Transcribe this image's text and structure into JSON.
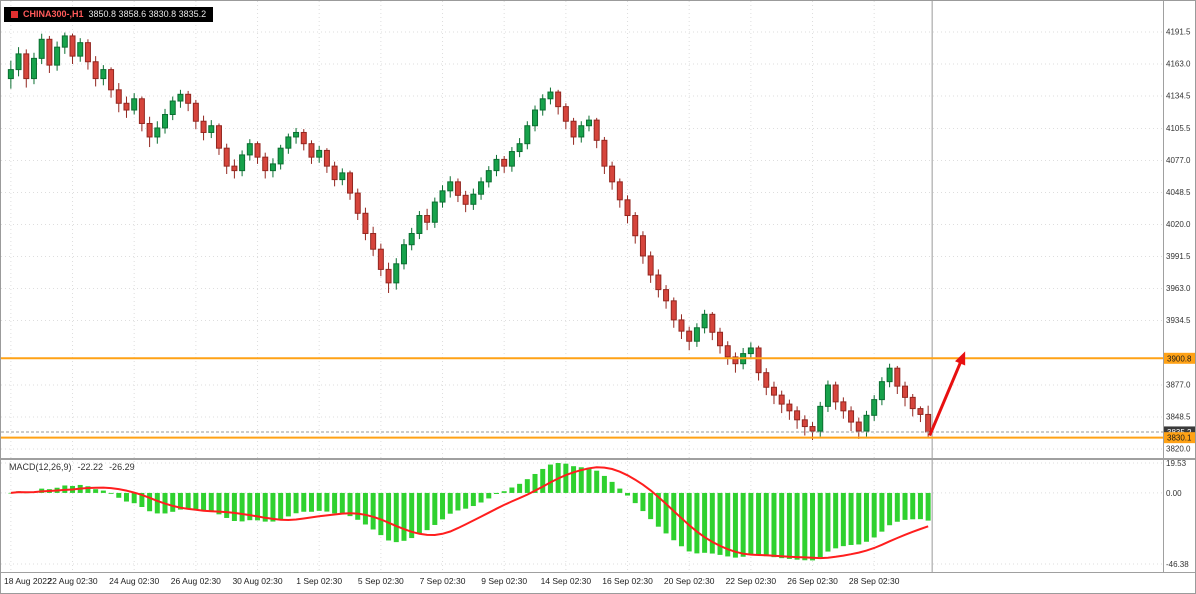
{
  "header": {
    "symbol": "CHINA300-,H1",
    "ohlc_text": "3850.8 3858.6 3830.8 3835.2"
  },
  "macd_panel": {
    "label": "MACD(12,26,9)",
    "value_main": "-22.22",
    "value_signal": "-26.29"
  },
  "colors": {
    "up": "#17A24B",
    "up_dark": "#0B6E31",
    "down": "#D6453C",
    "down_dark": "#932720",
    "hline": "#FFA216",
    "arrow": "#E81010",
    "hist": "#2FD12F",
    "signal": "#FF1E1E",
    "grid": "#DEDEDE",
    "axis_text": "#222222",
    "separator": "#A0A0A0",
    "price_label_bg": "#3A3A3A"
  },
  "chart_data": [
    {
      "type": "candlestick",
      "title": "CHINA300- H1",
      "x_tick_labels": [
        "18 Aug 2022",
        "22 Aug 02:30",
        "24 Aug 02:30",
        "26 Aug 02:30",
        "30 Aug 02:30",
        "1 Sep 02:30",
        "5 Sep 02:30",
        "7 Sep 02:30",
        "9 Sep 02:30",
        "14 Sep 02:30",
        "16 Sep 02:30",
        "20 Sep 02:30",
        "22 Sep 02:30",
        "26 Sep 02:30",
        "28 Sep 02:30"
      ],
      "x_tick_every_bars": 8,
      "y_ticks": [
        4191.5,
        4163.0,
        4134.5,
        4105.5,
        4077.0,
        4048.5,
        4020.0,
        3991.5,
        3963.0,
        3934.5,
        3877.0,
        3848.5,
        3820.0
      ],
      "ylim": [
        3815,
        4200
      ],
      "grid": "dotted",
      "candles_ohlc": [
        [
          4150,
          4166,
          4141,
          4158
        ],
        [
          4158,
          4178,
          4152,
          4172
        ],
        [
          4172,
          4176,
          4142,
          4150
        ],
        [
          4150,
          4173,
          4145,
          4168
        ],
        [
          4168,
          4190,
          4163,
          4185
        ],
        [
          4185,
          4188,
          4155,
          4162
        ],
        [
          4162,
          4183,
          4157,
          4178
        ],
        [
          4178,
          4191,
          4172,
          4188
        ],
        [
          4188,
          4190,
          4163,
          4170
        ],
        [
          4170,
          4186,
          4165,
          4182
        ],
        [
          4182,
          4185,
          4158,
          4165
        ],
        [
          4165,
          4170,
          4143,
          4150
        ],
        [
          4150,
          4162,
          4144,
          4158
        ],
        [
          4158,
          4160,
          4133,
          4140
        ],
        [
          4140,
          4146,
          4120,
          4128
        ],
        [
          4128,
          4134,
          4115,
          4122
        ],
        [
          4122,
          4137,
          4118,
          4132
        ],
        [
          4132,
          4134,
          4103,
          4110
        ],
        [
          4110,
          4116,
          4089,
          4098
        ],
        [
          4098,
          4112,
          4092,
          4106
        ],
        [
          4106,
          4123,
          4101,
          4118
        ],
        [
          4118,
          4134,
          4113,
          4130
        ],
        [
          4130,
          4140,
          4124,
          4136
        ],
        [
          4136,
          4139,
          4121,
          4128
        ],
        [
          4128,
          4131,
          4105,
          4112
        ],
        [
          4112,
          4117,
          4095,
          4102
        ],
        [
          4102,
          4113,
          4097,
          4108
        ],
        [
          4108,
          4110,
          4082,
          4088
        ],
        [
          4088,
          4092,
          4065,
          4072
        ],
        [
          4072,
          4078,
          4061,
          4068
        ],
        [
          4068,
          4086,
          4063,
          4082
        ],
        [
          4082,
          4096,
          4077,
          4092
        ],
        [
          4092,
          4094,
          4074,
          4080
        ],
        [
          4080,
          4084,
          4061,
          4068
        ],
        [
          4068,
          4079,
          4062,
          4074
        ],
        [
          4074,
          4091,
          4069,
          4088
        ],
        [
          4088,
          4101,
          4083,
          4098
        ],
        [
          4098,
          4106,
          4092,
          4102
        ],
        [
          4102,
          4105,
          4086,
          4092
        ],
        [
          4092,
          4095,
          4074,
          4080
        ],
        [
          4080,
          4090,
          4075,
          4086
        ],
        [
          4086,
          4088,
          4066,
          4072
        ],
        [
          4072,
          4076,
          4054,
          4060
        ],
        [
          4060,
          4070,
          4055,
          4066
        ],
        [
          4066,
          4068,
          4042,
          4048
        ],
        [
          4048,
          4052,
          4024,
          4030
        ],
        [
          4030,
          4035,
          4006,
          4012
        ],
        [
          4012,
          4018,
          3992,
          3998
        ],
        [
          3998,
          4003,
          3974,
          3980
        ],
        [
          3980,
          3986,
          3959,
          3968
        ],
        [
          3968,
          3990,
          3962,
          3985
        ],
        [
          3985,
          4007,
          3980,
          4002
        ],
        [
          4002,
          4017,
          3997,
          4012
        ],
        [
          4012,
          4032,
          4007,
          4028
        ],
        [
          4028,
          4034,
          4015,
          4022
        ],
        [
          4022,
          4044,
          4017,
          4040
        ],
        [
          4040,
          4055,
          4035,
          4050
        ],
        [
          4050,
          4063,
          4044,
          4058
        ],
        [
          4058,
          4061,
          4040,
          4046
        ],
        [
          4046,
          4050,
          4031,
          4038
        ],
        [
          4038,
          4052,
          4033,
          4047
        ],
        [
          4047,
          4062,
          4042,
          4058
        ],
        [
          4058,
          4072,
          4053,
          4068
        ],
        [
          4068,
          4082,
          4063,
          4078
        ],
        [
          4078,
          4081,
          4066,
          4072
        ],
        [
          4072,
          4089,
          4067,
          4085
        ],
        [
          4085,
          4097,
          4080,
          4092
        ],
        [
          4092,
          4112,
          4087,
          4108
        ],
        [
          4108,
          4126,
          4103,
          4122
        ],
        [
          4122,
          4136,
          4117,
          4132
        ],
        [
          4132,
          4142,
          4127,
          4138
        ],
        [
          4138,
          4140,
          4118,
          4125
        ],
        [
          4125,
          4128,
          4105,
          4112
        ],
        [
          4112,
          4115,
          4091,
          4098
        ],
        [
          4098,
          4112,
          4093,
          4108
        ],
        [
          4108,
          4117,
          4103,
          4113
        ],
        [
          4113,
          4115,
          4088,
          4095
        ],
        [
          4095,
          4098,
          4065,
          4072
        ],
        [
          4072,
          4076,
          4051,
          4058
        ],
        [
          4058,
          4061,
          4035,
          4042
        ],
        [
          4042,
          4046,
          4021,
          4028
        ],
        [
          4028,
          4031,
          4003,
          4010
        ],
        [
          4010,
          4014,
          3985,
          3992
        ],
        [
          3992,
          3996,
          3968,
          3975
        ],
        [
          3975,
          3980,
          3955,
          3962
        ],
        [
          3962,
          3966,
          3945,
          3952
        ],
        [
          3952,
          3955,
          3928,
          3935
        ],
        [
          3935,
          3940,
          3918,
          3925
        ],
        [
          3925,
          3929,
          3908,
          3916
        ],
        [
          3916,
          3932,
          3911,
          3928
        ],
        [
          3928,
          3944,
          3923,
          3940
        ],
        [
          3940,
          3942,
          3917,
          3924
        ],
        [
          3924,
          3928,
          3905,
          3912
        ],
        [
          3912,
          3916,
          3895,
          3902
        ],
        [
          3902,
          3906,
          3888,
          3896
        ],
        [
          3896,
          3910,
          3891,
          3905
        ],
        [
          3905,
          3915,
          3900,
          3910
        ],
        [
          3910,
          3912,
          3881,
          3888
        ],
        [
          3888,
          3892,
          3868,
          3875
        ],
        [
          3875,
          3880,
          3860,
          3868
        ],
        [
          3868,
          3872,
          3852,
          3860
        ],
        [
          3860,
          3864,
          3846,
          3854
        ],
        [
          3854,
          3858,
          3838,
          3846
        ],
        [
          3846,
          3850,
          3832,
          3840
        ],
        [
          3840,
          3844,
          3828,
          3836
        ],
        [
          3836,
          3862,
          3831,
          3858
        ],
        [
          3858,
          3881,
          3853,
          3877
        ],
        [
          3877,
          3880,
          3855,
          3862
        ],
        [
          3862,
          3866,
          3847,
          3854
        ],
        [
          3854,
          3858,
          3836,
          3844
        ],
        [
          3844,
          3848,
          3829,
          3836
        ],
        [
          3836,
          3854,
          3831,
          3850
        ],
        [
          3850,
          3868,
          3845,
          3864
        ],
        [
          3864,
          3884,
          3859,
          3880
        ],
        [
          3880,
          3896,
          3875,
          3892
        ],
        [
          3892,
          3894,
          3869,
          3876
        ],
        [
          3876,
          3880,
          3858,
          3866
        ],
        [
          3866,
          3869,
          3849,
          3856
        ],
        [
          3856,
          3858,
          3844,
          3850.8
        ],
        [
          3850.8,
          3858.6,
          3830.8,
          3835.2
        ]
      ],
      "hlines": [
        {
          "price": 3900.8,
          "label": "3900.8"
        },
        {
          "price": 3830.1,
          "label": "3830.1"
        }
      ],
      "current_price": {
        "price": 3835.2,
        "label": "3835.2"
      },
      "arrow_annotation": {
        "x1_bar": 119.2,
        "y1_price": 3832,
        "x2_bar": 123.8,
        "y2_price": 3907
      }
    },
    {
      "type": "macd",
      "label": "MACD(12,26,9)",
      "params": [
        12,
        26,
        9
      ],
      "readout": [
        -22.22,
        -26.29
      ],
      "y_ticks": [
        19.53,
        0,
        -46.38
      ],
      "ylim": [
        -46.38,
        19.53
      ],
      "derived_from": "closes of candles_ohlc: histogram = EMA12 - EMA26, signal = SMA9 of histogram"
    }
  ]
}
